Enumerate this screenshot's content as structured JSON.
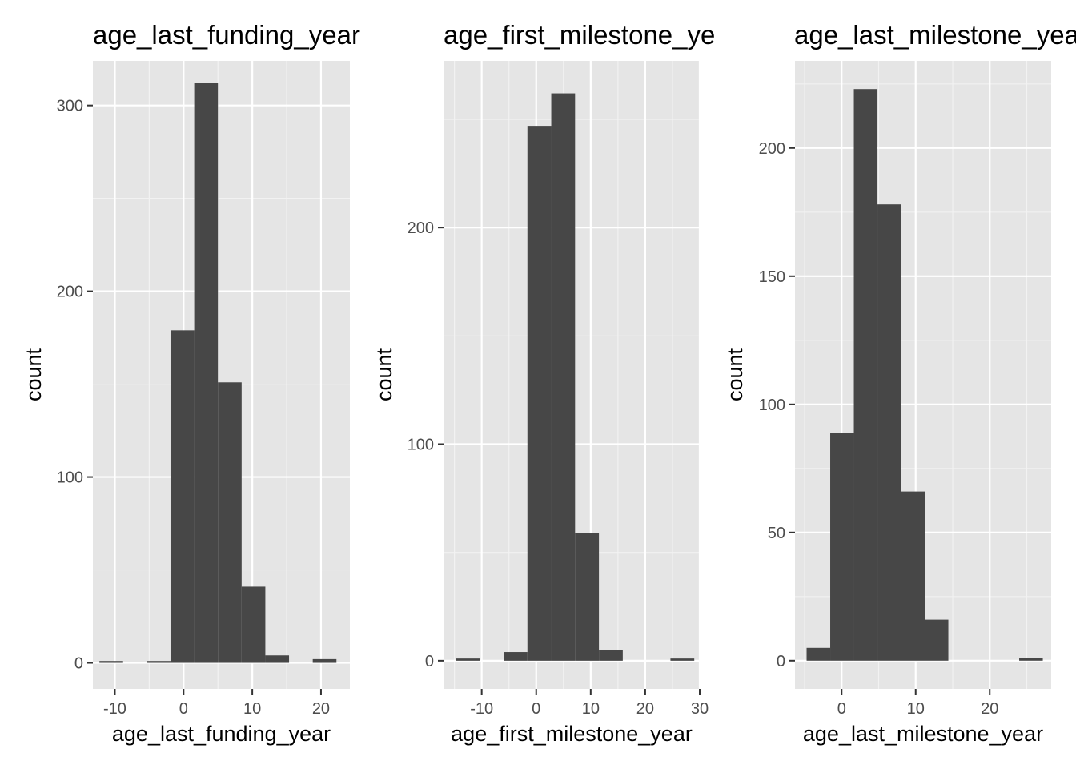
{
  "chart_data": [
    {
      "type": "bar",
      "title": "age_last_funding_year",
      "xlabel": "age_last_funding_year",
      "ylabel": "count",
      "xlim": [
        -13.2,
        24.2
      ],
      "ylim": [
        -14,
        324
      ],
      "xticks": [
        -10,
        0,
        10,
        20
      ],
      "yticks": [
        0,
        100,
        200,
        300
      ],
      "bin_edges": [
        -12.25,
        -8.8,
        -5.35,
        -1.9,
        1.55,
        5.0,
        8.45,
        11.9,
        15.35,
        18.8,
        22.25
      ],
      "values": [
        1,
        0,
        1,
        179,
        312,
        151,
        41,
        4,
        0,
        2
      ]
    },
    {
      "type": "bar",
      "title": "age_first_milestone_year",
      "xlabel": "age_first_milestone_year",
      "ylabel": "count",
      "xlim": [
        -17.0,
        30.0
      ],
      "ylim": [
        -13,
        277
      ],
      "xticks": [
        -10,
        0,
        10,
        20,
        30
      ],
      "yticks": [
        0,
        100,
        200
      ],
      "bin_edges": [
        -14.73,
        -10.36,
        -5.98,
        -1.61,
        2.76,
        7.13,
        11.51,
        15.88,
        20.25,
        24.63,
        29.0
      ],
      "values": [
        1,
        0,
        4,
        247,
        262,
        59,
        5,
        0,
        0,
        1
      ]
    },
    {
      "type": "bar",
      "title": "age_last_milestone_year",
      "xlabel": "age_last_milestone_year",
      "ylabel": "count",
      "xlim": [
        -6.3,
        28.3
      ],
      "ylim": [
        -11,
        234
      ],
      "xticks": [
        0,
        10,
        20
      ],
      "yticks": [
        0,
        50,
        100,
        150,
        200
      ],
      "bin_edges": [
        -4.73,
        -1.54,
        1.65,
        4.84,
        8.03,
        11.22,
        14.41,
        17.6,
        20.79,
        23.98,
        27.17
      ],
      "values": [
        5,
        89,
        223,
        178,
        66,
        16,
        0,
        0,
        0,
        1
      ]
    }
  ]
}
